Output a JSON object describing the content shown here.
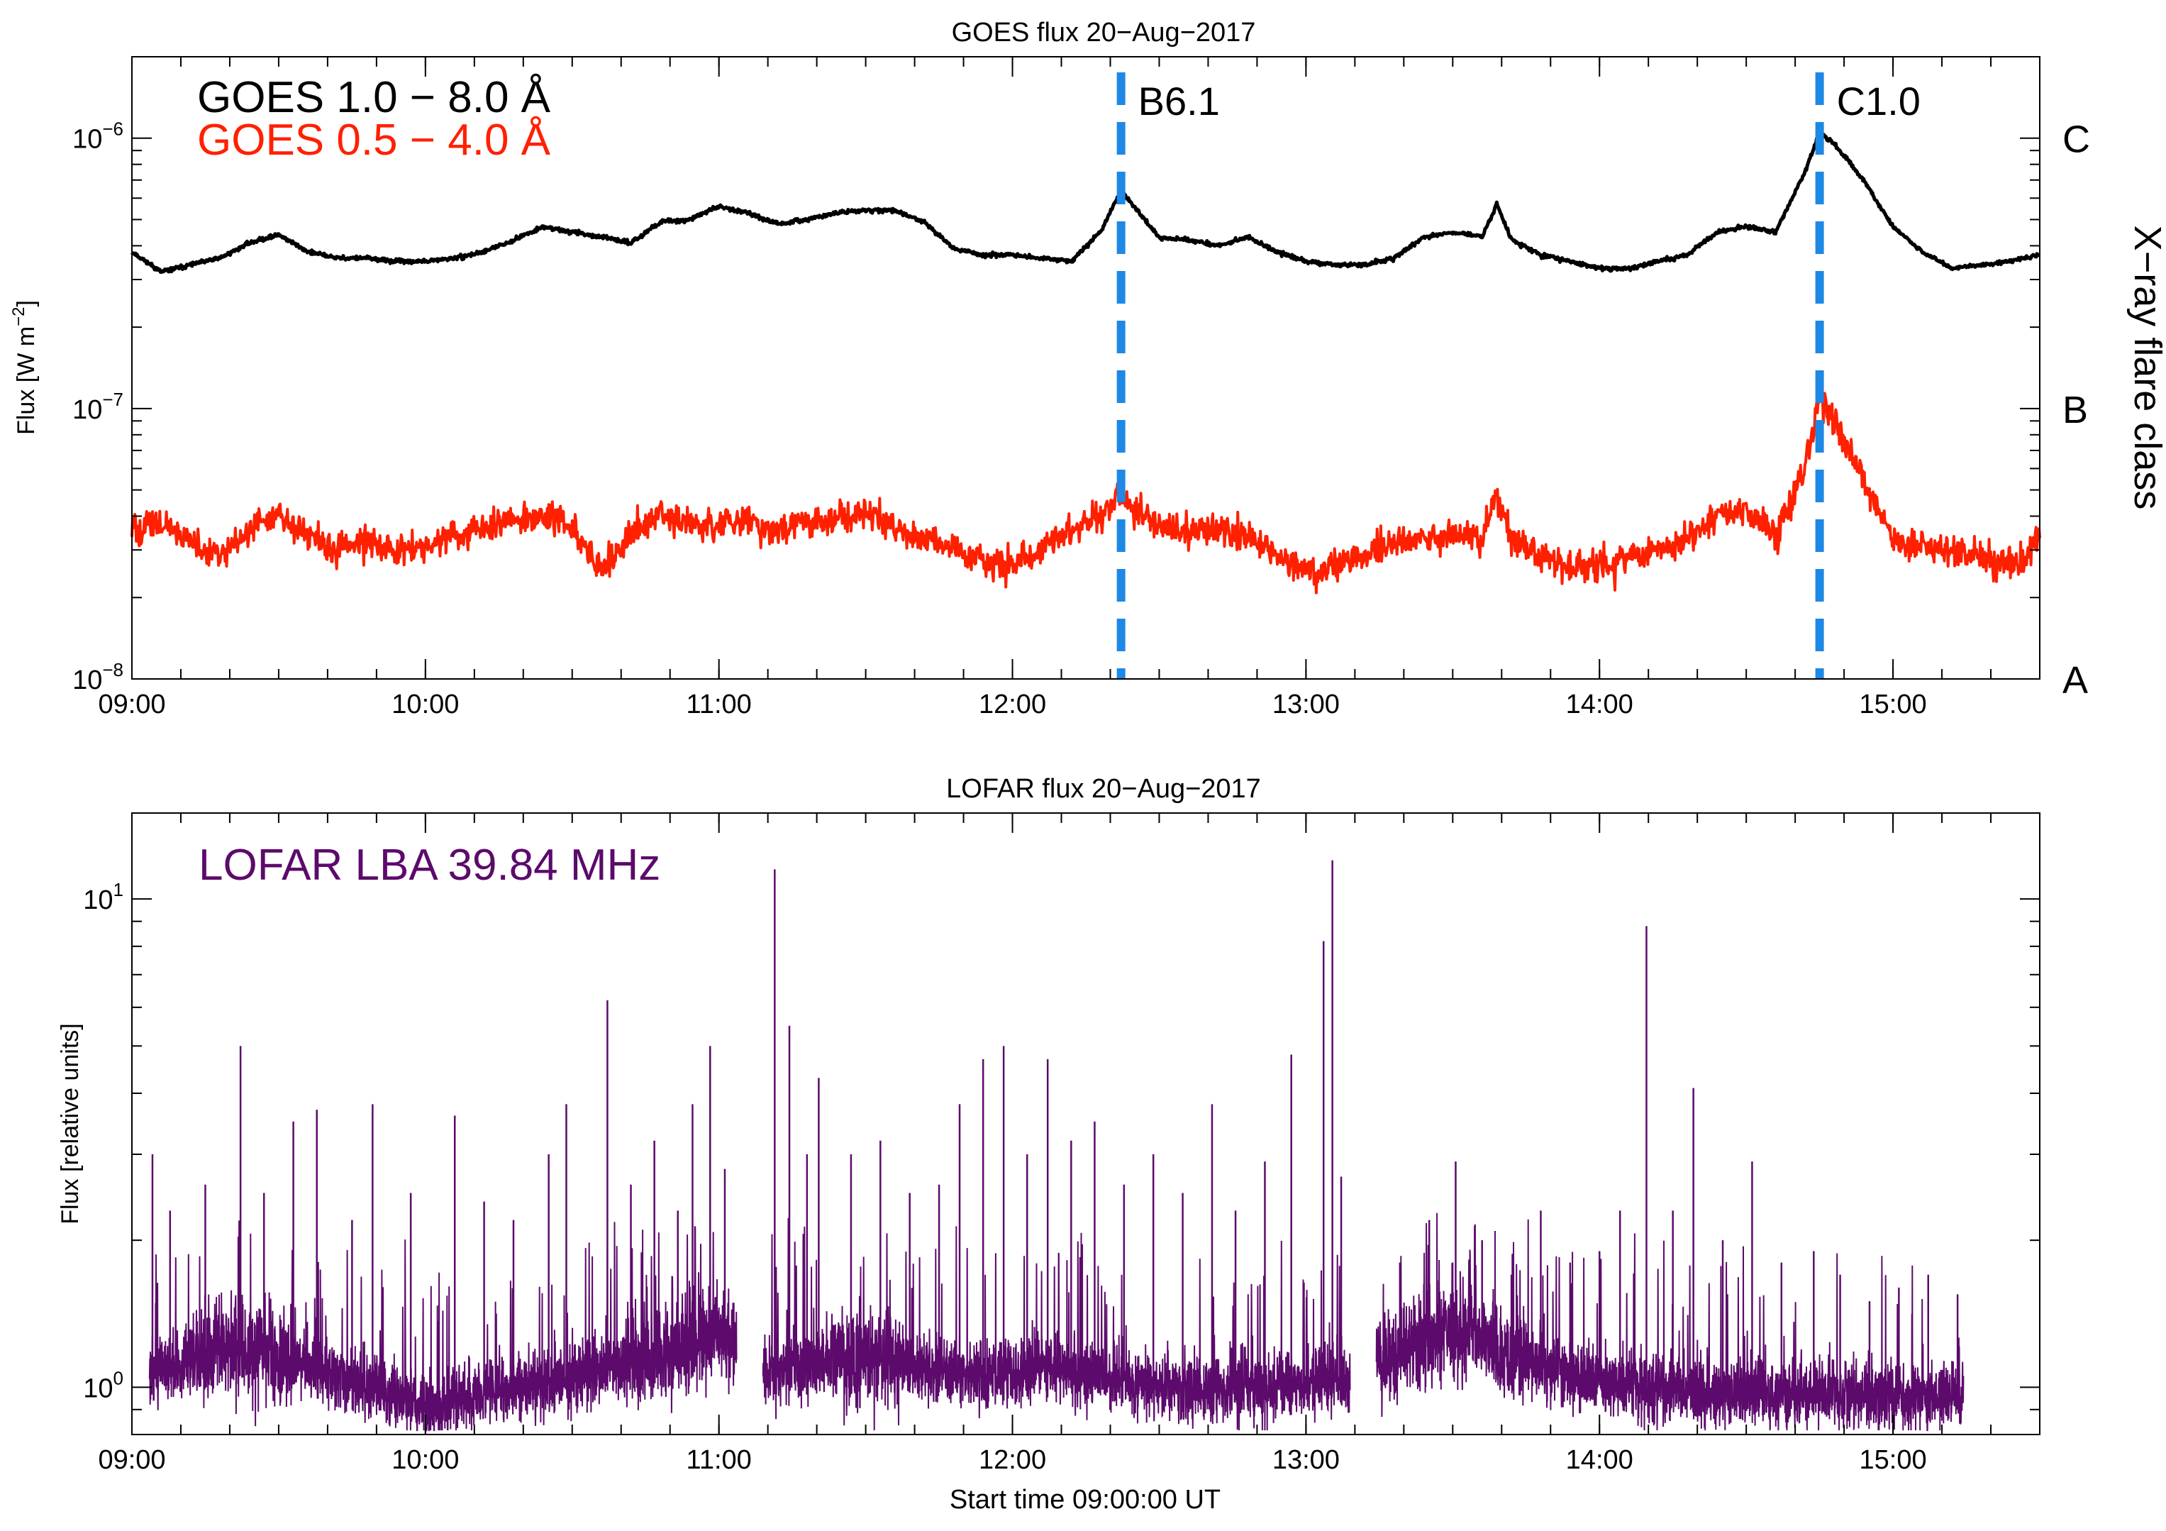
{
  "chart_data": [
    {
      "type": "line",
      "title": "GOES flux 20−Aug−2017",
      "ylabel": "Flux [W m",
      "ylabel_sup": "−2",
      "ylabel_close": "]",
      "y2label": "X−ray flare class",
      "yscale": "log",
      "ylim": [
        1e-08,
        2e-06
      ],
      "xlim": [
        9.0,
        15.5
      ],
      "x_ticks": [
        {
          "value": 9,
          "label": "09:00"
        },
        {
          "value": 10,
          "label": "10:00"
        },
        {
          "value": 11,
          "label": "11:00"
        },
        {
          "value": 12,
          "label": "12:00"
        },
        {
          "value": 13,
          "label": "13:00"
        },
        {
          "value": 14,
          "label": "14:00"
        },
        {
          "value": 15,
          "label": "15:00"
        }
      ],
      "y_ticks": [
        {
          "value": 1e-08,
          "base": "10",
          "exp": "−8"
        },
        {
          "value": 1e-07,
          "base": "10",
          "exp": "−7"
        },
        {
          "value": 1e-06,
          "base": "10",
          "exp": "−6"
        }
      ],
      "flare_classes": [
        {
          "value": 1e-08,
          "label": "A"
        },
        {
          "value": 1e-07,
          "label": "B"
        },
        {
          "value": 1e-06,
          "label": "C"
        }
      ],
      "legend": [
        "GOES 1.0 − 8.0 Å",
        "GOES 0.5 − 4.0 Å"
      ],
      "series": [
        {
          "name": "GOES 1.0 − 8.0 Å",
          "color": "#000000",
          "x": [
            9.0,
            9.1,
            9.2,
            9.3,
            9.4,
            9.5,
            9.6,
            9.7,
            9.8,
            9.9,
            10.0,
            10.1,
            10.2,
            10.3,
            10.4,
            10.5,
            10.6,
            10.7,
            10.8,
            10.9,
            11.0,
            11.1,
            11.2,
            11.3,
            11.4,
            11.5,
            11.6,
            11.7,
            11.8,
            11.9,
            12.0,
            12.1,
            12.2,
            12.3,
            12.37,
            12.5,
            12.6,
            12.7,
            12.8,
            12.9,
            13.0,
            13.1,
            13.2,
            13.3,
            13.4,
            13.5,
            13.6,
            13.65,
            13.7,
            13.8,
            13.9,
            14.0,
            14.1,
            14.2,
            14.3,
            14.4,
            14.5,
            14.6,
            14.7,
            14.75,
            14.8,
            14.9,
            15.0,
            15.1,
            15.2,
            15.3,
            15.4,
            15.5
          ],
          "values": [
            3.8e-07,
            3.2e-07,
            3.4e-07,
            3.6e-07,
            4.1e-07,
            4.4e-07,
            3.8e-07,
            3.6e-07,
            3.6e-07,
            3.5e-07,
            3.5e-07,
            3.6e-07,
            3.8e-07,
            4.2e-07,
            4.7e-07,
            4.5e-07,
            4.3e-07,
            4.1e-07,
            4.9e-07,
            5e-07,
            5.6e-07,
            5.3e-07,
            4.8e-07,
            5e-07,
            5.3e-07,
            5.4e-07,
            5.4e-07,
            4.9e-07,
            3.9e-07,
            3.7e-07,
            3.7e-07,
            3.6e-07,
            3.5e-07,
            4.5e-07,
            6.4e-07,
            4.3e-07,
            4.2e-07,
            4e-07,
            4.3e-07,
            3.8e-07,
            3.5e-07,
            3.4e-07,
            3.4e-07,
            3.6e-07,
            4.3e-07,
            4.5e-07,
            4.3e-07,
            5.7e-07,
            4.2e-07,
            3.7e-07,
            3.5e-07,
            3.3e-07,
            3.3e-07,
            3.5e-07,
            3.7e-07,
            4.5e-07,
            4.7e-07,
            4.5e-07,
            7.5e-07,
            1.05e-06,
            9.5e-07,
            7e-07,
            4.7e-07,
            3.8e-07,
            3.3e-07,
            3.4e-07,
            3.5e-07,
            3.7e-07
          ]
        },
        {
          "name": "GOES 0.5 − 4.0 Å",
          "color": "#ff2000",
          "x": [
            9.0,
            9.1,
            9.2,
            9.3,
            9.4,
            9.5,
            9.6,
            9.7,
            9.8,
            9.9,
            10.0,
            10.1,
            10.2,
            10.3,
            10.4,
            10.5,
            10.6,
            10.7,
            10.8,
            10.9,
            11.0,
            11.1,
            11.2,
            11.3,
            11.4,
            11.5,
            11.6,
            11.7,
            11.8,
            11.9,
            12.0,
            12.1,
            12.2,
            12.3,
            12.37,
            12.5,
            12.6,
            12.7,
            12.8,
            12.9,
            13.0,
            13.1,
            13.2,
            13.3,
            13.4,
            13.5,
            13.6,
            13.65,
            13.7,
            13.8,
            13.9,
            14.0,
            14.1,
            14.2,
            14.3,
            14.4,
            14.5,
            14.6,
            14.7,
            14.75,
            14.8,
            14.9,
            15.0,
            15.1,
            15.2,
            15.3,
            15.4,
            15.5
          ],
          "values": [
            3.5e-08,
            3.8e-08,
            3.2e-08,
            2.9e-08,
            3.6e-08,
            4e-08,
            3.4e-08,
            3e-08,
            3.2e-08,
            3e-08,
            3.1e-08,
            3.4e-08,
            3.6e-08,
            3.9e-08,
            4e-08,
            3.7e-08,
            2.5e-08,
            3.5e-08,
            4e-08,
            3.8e-08,
            3.7e-08,
            3.9e-08,
            3.5e-08,
            3.8e-08,
            3.9e-08,
            4.1e-08,
            3.6e-08,
            3.3e-08,
            3e-08,
            2.8e-08,
            2.6e-08,
            3e-08,
            3.6e-08,
            4e-08,
            4.8e-08,
            3.7e-08,
            3.5e-08,
            3.6e-08,
            3.4e-08,
            2.9e-08,
            2.5e-08,
            2.6e-08,
            2.9e-08,
            3.2e-08,
            3.4e-08,
            3.4e-08,
            3.3e-08,
            4.8e-08,
            3.3e-08,
            2.9e-08,
            2.6e-08,
            2.6e-08,
            2.8e-08,
            3e-08,
            3.3e-08,
            4e-08,
            4.2e-08,
            3.3e-08,
            6e-08,
            1.12e-07,
            9e-08,
            5.5e-08,
            3.2e-08,
            3.1e-08,
            3e-08,
            2.8e-08,
            2.6e-08,
            3.3e-08
          ]
        }
      ],
      "flare_markers": [
        {
          "x": 12.37,
          "label": "B6.1",
          "color": "#1e88e5"
        },
        {
          "x": 14.75,
          "label": "C1.0",
          "color": "#1e88e5"
        }
      ]
    },
    {
      "type": "line",
      "title": "LOFAR flux 20−Aug−2017",
      "xlabel": "Start time 09:00:00 UT",
      "ylabel": "Flux [relative units]",
      "yscale": "log",
      "ylim": [
        0.8,
        15
      ],
      "xlim": [
        9.0,
        15.5
      ],
      "x_ticks": [
        {
          "value": 9,
          "label": "09:00"
        },
        {
          "value": 10,
          "label": "10:00"
        },
        {
          "value": 11,
          "label": "11:00"
        },
        {
          "value": 12,
          "label": "12:00"
        },
        {
          "value": 13,
          "label": "13:00"
        },
        {
          "value": 14,
          "label": "14:00"
        },
        {
          "value": 15,
          "label": "15:00"
        }
      ],
      "y_ticks": [
        {
          "value": 1,
          "base": "10",
          "exp": "0"
        },
        {
          "value": 10,
          "base": "10",
          "exp": "1"
        }
      ],
      "legend": [
        "LOFAR LBA 39.84 MHz"
      ],
      "series": [
        {
          "name": "LOFAR LBA 39.84 MHz",
          "color": "#5c0a6b",
          "segments": [
            [
              9.06,
              11.06
            ],
            [
              11.15,
              13.15
            ],
            [
              13.24,
              15.24
            ]
          ],
          "x": [
            9.06,
            9.3,
            9.5,
            9.7,
            9.9,
            10.0,
            10.1,
            10.3,
            10.5,
            10.6,
            10.8,
            11.0,
            11.06,
            11.15,
            11.3,
            11.5,
            11.7,
            11.9,
            12.1,
            12.3,
            12.5,
            12.7,
            12.9,
            13.1,
            13.15,
            13.24,
            13.4,
            13.55,
            13.7,
            13.9,
            14.1,
            14.3,
            14.5,
            14.7,
            14.9,
            15.1,
            15.24
          ],
          "values": [
            1.05,
            1.2,
            1.15,
            1.05,
            0.95,
            0.9,
            0.93,
            1.0,
            1.05,
            1.1,
            1.15,
            1.3,
            1.2,
            1.05,
            1.1,
            1.15,
            1.1,
            1.05,
            1.1,
            1.05,
            1.0,
            0.98,
            1.0,
            1.05,
            1.0,
            1.15,
            1.25,
            1.3,
            1.15,
            1.05,
            1.0,
            0.98,
            0.97,
            0.97,
            0.97,
            0.96,
            0.96
          ],
          "spikes": [
            {
              "x": 9.07,
              "value": 3.0
            },
            {
              "x": 9.13,
              "value": 2.3
            },
            {
              "x": 9.25,
              "value": 2.6
            },
            {
              "x": 9.37,
              "value": 5.0
            },
            {
              "x": 9.45,
              "value": 2.5
            },
            {
              "x": 9.55,
              "value": 3.5
            },
            {
              "x": 9.63,
              "value": 3.7
            },
            {
              "x": 9.75,
              "value": 2.2
            },
            {
              "x": 9.82,
              "value": 3.8
            },
            {
              "x": 9.95,
              "value": 2.5
            },
            {
              "x": 10.1,
              "value": 3.6
            },
            {
              "x": 10.2,
              "value": 2.4
            },
            {
              "x": 10.3,
              "value": 2.2
            },
            {
              "x": 10.42,
              "value": 3.0
            },
            {
              "x": 10.48,
              "value": 3.8
            },
            {
              "x": 10.62,
              "value": 6.2
            },
            {
              "x": 10.7,
              "value": 2.6
            },
            {
              "x": 10.78,
              "value": 3.2
            },
            {
              "x": 10.86,
              "value": 2.3
            },
            {
              "x": 10.91,
              "value": 3.8
            },
            {
              "x": 10.97,
              "value": 5.0
            },
            {
              "x": 11.02,
              "value": 2.8
            },
            {
              "x": 11.19,
              "value": 11.5
            },
            {
              "x": 11.24,
              "value": 5.5
            },
            {
              "x": 11.3,
              "value": 3.0
            },
            {
              "x": 11.34,
              "value": 4.3
            },
            {
              "x": 11.45,
              "value": 3.0
            },
            {
              "x": 11.55,
              "value": 3.2
            },
            {
              "x": 11.65,
              "value": 2.5
            },
            {
              "x": 11.75,
              "value": 2.6
            },
            {
              "x": 11.82,
              "value": 3.8
            },
            {
              "x": 11.9,
              "value": 4.7
            },
            {
              "x": 11.97,
              "value": 5.0
            },
            {
              "x": 12.05,
              "value": 3.0
            },
            {
              "x": 12.12,
              "value": 4.7
            },
            {
              "x": 12.2,
              "value": 3.2
            },
            {
              "x": 12.28,
              "value": 3.5
            },
            {
              "x": 12.38,
              "value": 2.6
            },
            {
              "x": 12.48,
              "value": 3.0
            },
            {
              "x": 12.58,
              "value": 2.5
            },
            {
              "x": 12.68,
              "value": 3.8
            },
            {
              "x": 12.76,
              "value": 2.3
            },
            {
              "x": 12.86,
              "value": 2.9
            },
            {
              "x": 12.95,
              "value": 4.8
            },
            {
              "x": 13.06,
              "value": 8.2
            },
            {
              "x": 13.09,
              "value": 12.0
            },
            {
              "x": 13.12,
              "value": 2.7
            },
            {
              "x": 13.32,
              "value": 1.8
            },
            {
              "x": 13.42,
              "value": 2.2
            },
            {
              "x": 13.51,
              "value": 2.9
            },
            {
              "x": 13.6,
              "value": 2.0
            },
            {
              "x": 13.7,
              "value": 1.7
            },
            {
              "x": 13.8,
              "value": 2.3
            },
            {
              "x": 13.9,
              "value": 1.8
            },
            {
              "x": 14.0,
              "value": 1.9
            },
            {
              "x": 14.07,
              "value": 2.3
            },
            {
              "x": 14.16,
              "value": 8.8
            },
            {
              "x": 14.25,
              "value": 2.3
            },
            {
              "x": 14.32,
              "value": 4.1
            },
            {
              "x": 14.42,
              "value": 2.0
            },
            {
              "x": 14.52,
              "value": 2.9
            },
            {
              "x": 14.62,
              "value": 1.8
            },
            {
              "x": 14.73,
              "value": 1.9
            },
            {
              "x": 14.82,
              "value": 1.7
            },
            {
              "x": 14.92,
              "value": 1.5
            },
            {
              "x": 15.02,
              "value": 1.6
            },
            {
              "x": 15.12,
              "value": 1.7
            },
            {
              "x": 15.22,
              "value": 1.55
            }
          ]
        }
      ]
    }
  ]
}
